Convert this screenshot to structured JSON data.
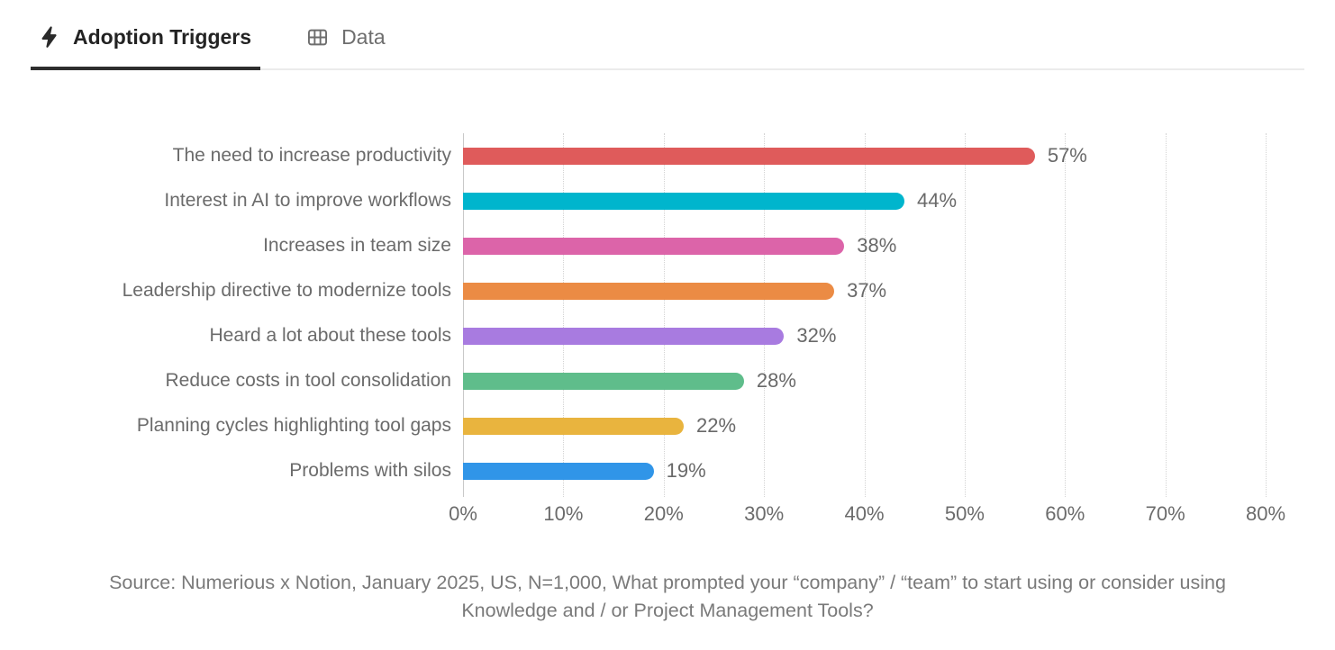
{
  "tabs": [
    {
      "label": "Adoption Triggers",
      "icon": "lightning-bolt-icon",
      "active": true
    },
    {
      "label": "Data",
      "icon": "table-icon",
      "active": false
    }
  ],
  "chart_data": {
    "type": "bar",
    "orientation": "horizontal",
    "title": "Adoption Triggers",
    "categories": [
      "The need to increase productivity",
      "Interest in AI to improve workflows",
      "Increases in team size",
      "Leadership directive to modernize tools",
      "Heard a lot about these tools",
      "Reduce costs in tool consolidation",
      "Planning cycles highlighting tool gaps",
      "Problems with silos"
    ],
    "values": [
      57,
      44,
      38,
      37,
      32,
      28,
      22,
      19
    ],
    "value_labels": [
      "57%",
      "44%",
      "38%",
      "37%",
      "32%",
      "28%",
      "22%",
      "19%"
    ],
    "colors": [
      "#df5b5b",
      "#00b5cd",
      "#dc64a9",
      "#eb8b44",
      "#a87be0",
      "#5fbd8b",
      "#e9b43e",
      "#3095e8"
    ],
    "xlim": [
      0,
      80
    ],
    "tick_labels": [
      "0%",
      "10%",
      "20%",
      "30%",
      "40%",
      "50%",
      "60%",
      "70%",
      "80%"
    ],
    "grid": "vertical-dotted",
    "legend": "none"
  },
  "source_note": "Source: Numerious x Notion, January 2025, US, N=1,000, What prompted your “company” / “team” to start using or consider using Knowledge and / or Project Management Tools?",
  "colors": {
    "active_tab_text": "#232323",
    "inactive_tab_text": "#6e6e6e",
    "active_tab_underline": "#2e2e2e",
    "label_text": "#6b6b6b",
    "axis_line": "#c9c9c9",
    "gridline": "#d4d4d4"
  }
}
